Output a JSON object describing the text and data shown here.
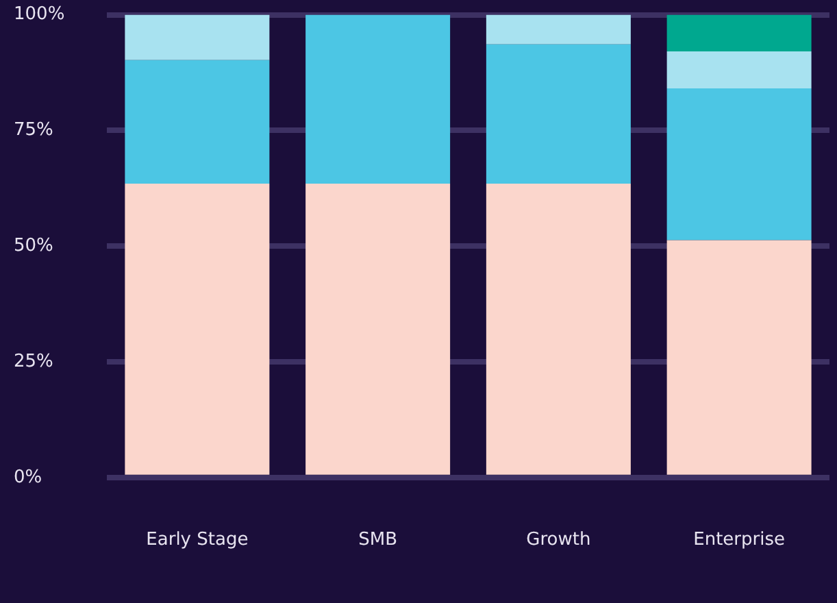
{
  "chart_data": {
    "type": "bar",
    "stacked": true,
    "categories": [
      "Early Stage",
      "SMB",
      "Growth",
      "Enterprise"
    ],
    "series": [
      {
        "color": "#fbd6cc",
        "values": [
          63.5,
          63.5,
          63.5,
          51.3
        ]
      },
      {
        "color": "#4cc6e4",
        "values": [
          26.7,
          36.5,
          30.1,
          32.8
        ]
      },
      {
        "color": "#a8e2f0",
        "values": [
          9.8,
          null,
          6.4,
          8
        ]
      },
      {
        "color": "#00a88f",
        "values": [
          null,
          null,
          null,
          7.9
        ]
      }
    ],
    "ylim": [
      0,
      100
    ],
    "yticks": [
      {
        "value": 0,
        "label": "0%"
      },
      {
        "value": 25,
        "label": "25%"
      },
      {
        "value": 50,
        "label": "50%"
      },
      {
        "value": 75,
        "label": "75%"
      },
      {
        "value": 100,
        "label": "100%"
      }
    ],
    "grid": "y",
    "legend": false
  }
}
